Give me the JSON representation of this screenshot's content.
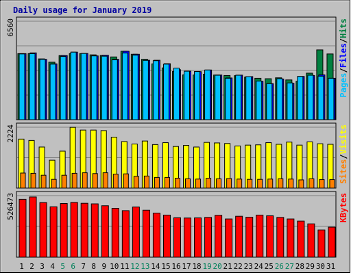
{
  "chart_data": [
    {
      "type": "bar",
      "title": "Daily usage for January 2019",
      "categories": [
        "1",
        "2",
        "3",
        "4",
        "5",
        "6",
        "7",
        "8",
        "9",
        "10",
        "11",
        "12",
        "13",
        "14",
        "15",
        "16",
        "17",
        "18",
        "19",
        "20",
        "21",
        "22",
        "23",
        "24",
        "25",
        "26",
        "27",
        "28",
        "29",
        "30",
        "31"
      ],
      "weekend_days": [
        "5",
        "6",
        "12",
        "13",
        "19",
        "20",
        "26",
        "27"
      ],
      "max_label": "6560",
      "ylim": [
        0,
        6560
      ],
      "grid": true,
      "legend": [
        {
          "text": "Pages",
          "color": "#00c0ff"
        },
        {
          "text": "Files",
          "color": "#0000ff"
        },
        {
          "text": "Hits",
          "color": "#008040"
        }
      ],
      "series": [
        {
          "name": "Hits",
          "color": "#008040",
          "values": [
            4400,
            4400,
            4050,
            3830,
            4270,
            4400,
            4400,
            4320,
            4280,
            4180,
            4560,
            4360,
            4020,
            3720,
            3450,
            3210,
            2990,
            2980,
            3030,
            2980,
            2940,
            2930,
            2840,
            2760,
            2730,
            2790,
            2650,
            2560,
            3100,
            4650,
            4380
          ]
        },
        {
          "name": "Files",
          "color": "#0000ff",
          "values": [
            4400,
            4450,
            4020,
            3720,
            4270,
            4500,
            4410,
            4250,
            4290,
            4020,
            4560,
            4360,
            3960,
            3960,
            3730,
            3330,
            3230,
            3200,
            3310,
            2980,
            2780,
            2970,
            2870,
            2560,
            2400,
            2710,
            2430,
            2880,
            2940,
            2990,
            2760
          ]
        },
        {
          "name": "Pages",
          "color": "#00c0ff",
          "values": [
            4380,
            4400,
            4020,
            3700,
            4210,
            4500,
            4410,
            4250,
            4230,
            3990,
            4440,
            4300,
            3950,
            3930,
            3700,
            3440,
            3230,
            3210,
            3310,
            2960,
            2760,
            2960,
            2870,
            2570,
            2400,
            2730,
            2450,
            2880,
            2960,
            2900,
            2760
          ]
        }
      ]
    },
    {
      "type": "bar",
      "max_label": "2224",
      "ylim": [
        0,
        2224
      ],
      "grid": true,
      "legend": [
        {
          "text": "Sites",
          "color": "#ff8000"
        },
        {
          "text": "Visits",
          "color": "#ffff00"
        }
      ],
      "series": [
        {
          "name": "Visits",
          "color": "#ffff00",
          "values": [
            1790,
            1740,
            1500,
            1020,
            1350,
            2220,
            2120,
            2120,
            2100,
            1860,
            1700,
            1610,
            1720,
            1590,
            1660,
            1520,
            1560,
            1500,
            1670,
            1650,
            1630,
            1540,
            1570,
            1580,
            1660,
            1600,
            1680,
            1570,
            1690,
            1620,
            1600
          ]
        },
        {
          "name": "Sites",
          "color": "#ff8000",
          "values": [
            550,
            540,
            470,
            320,
            470,
            540,
            560,
            530,
            560,
            510,
            520,
            430,
            440,
            390,
            390,
            360,
            340,
            330,
            360,
            340,
            350,
            330,
            320,
            320,
            330,
            340,
            330,
            300,
            340,
            310,
            310
          ]
        }
      ]
    },
    {
      "type": "bar",
      "max_label": "526473",
      "ylim": [
        0,
        526473
      ],
      "grid": true,
      "legend": [
        {
          "text": "KBytes",
          "color": "#ff0000"
        }
      ],
      "series": [
        {
          "name": "KBytes",
          "color": "#ff0000",
          "values": [
            495000,
            515000,
            467000,
            431000,
            459000,
            468000,
            461000,
            456000,
            440000,
            418000,
            398000,
            429000,
            402000,
            377000,
            360000,
            337000,
            335000,
            336000,
            340000,
            358000,
            327000,
            350000,
            342000,
            360000,
            354000,
            340000,
            327000,
            309000,
            285000,
            233000,
            257000
          ]
        }
      ]
    }
  ]
}
